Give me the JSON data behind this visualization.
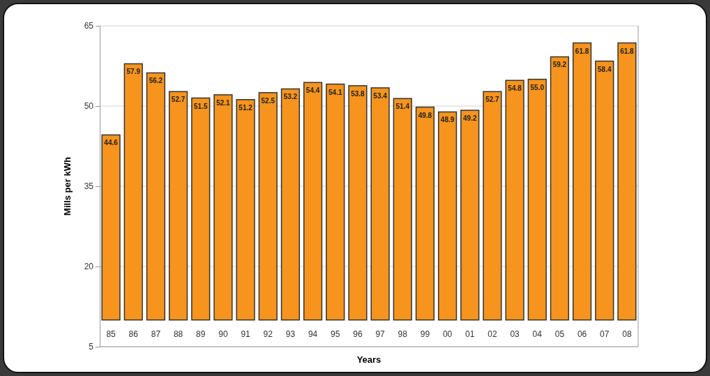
{
  "chart_data": {
    "type": "bar",
    "xlabel": "Years",
    "ylabel": "Mills per kWh",
    "categories": [
      "85",
      "86",
      "87",
      "88",
      "89",
      "90",
      "91",
      "92",
      "93",
      "94",
      "95",
      "96",
      "97",
      "98",
      "99",
      "00",
      "01",
      "02",
      "03",
      "04",
      "05",
      "06",
      "07",
      "08"
    ],
    "base": [
      10,
      10,
      10,
      10,
      10,
      10,
      10,
      10,
      10,
      10,
      10,
      10,
      10,
      10,
      10,
      10,
      10,
      10,
      10,
      10,
      10,
      10,
      10,
      10
    ],
    "values": [
      34.6,
      47.9,
      46.2,
      42.7,
      41.5,
      42.1,
      41.2,
      42.5,
      43.2,
      44.4,
      44.1,
      43.8,
      43.4,
      41.4,
      39.8,
      38.9,
      39.2,
      42.7,
      44.8,
      45.0,
      49.2,
      51.8,
      48.4,
      51.8
    ],
    "value_labels": [
      "44.6",
      "57.9",
      "56.2",
      "52.7",
      "51.5",
      "52.1",
      "51.2",
      "52.5",
      "53.2",
      "54.4",
      "54.1",
      "53.8",
      "53.4",
      "51.4",
      "49.8",
      "48.9",
      "49.2",
      "52.7",
      "54.8",
      "55.0",
      "59.2",
      "61.8",
      "58.4",
      "61.8"
    ],
    "color": "#f7941d",
    "ylim": [
      5,
      65
    ],
    "yticks": [
      5,
      20,
      35,
      50,
      65
    ],
    "grid": "y"
  }
}
